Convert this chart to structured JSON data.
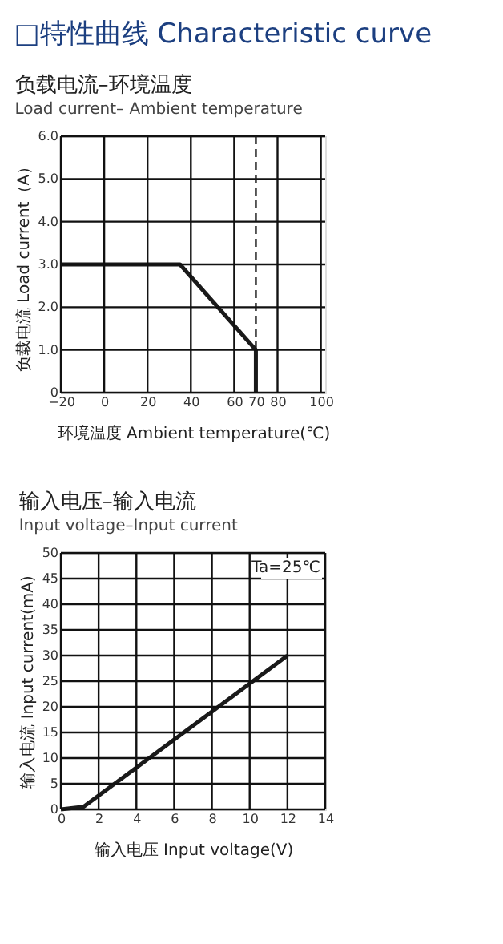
{
  "chart_data": [
    {
      "type": "line",
      "title": "负载电流–环境温度",
      "subtitle": "Load current– Ambient temperature",
      "annotations": [
        "□特性曲线 Characteristic curve"
      ],
      "xlabel": "环境温度 Ambient temperature(℃)",
      "ylabel": "负载电流 Load current（A）",
      "series": [
        {
          "color": "#1a1a1a",
          "x": [
            -20,
            35,
            70,
            70
          ],
          "values": [
            3,
            3,
            1,
            0
          ]
        }
      ],
      "xlim": [
        -20,
        102
      ],
      "xticks": [
        -20,
        0,
        20,
        40,
        60,
        70,
        80,
        100
      ],
      "ylim": [
        0,
        6
      ],
      "yticks": [
        0,
        {
          "value": 1,
          "label": "1.0"
        },
        {
          "value": 2,
          "label": "2.0"
        },
        {
          "value": 3,
          "label": "3.0"
        },
        {
          "value": 4,
          "label": "4.0"
        },
        {
          "value": 5,
          "label": "5.0"
        },
        {
          "value": 6,
          "label": "6.0"
        }
      ],
      "ref_lines": [
        {
          "axis": "x",
          "value": 70,
          "line_style": "dashed",
          "color": "#1a1a1a"
        }
      ],
      "grid": true,
      "marker": "none",
      "line_style": "solid",
      "legend": false
    },
    {
      "type": "line",
      "title": "输入电压–输入电流",
      "subtitle": "Input voltage–Input current",
      "annotations": [
        "Ta=25℃"
      ],
      "xlabel": "输入电压 Input voltage(V)",
      "ylabel": "输入电流 Input current(mA)",
      "series": [
        {
          "color": "#1a1a1a",
          "x": [
            0,
            1.2,
            12
          ],
          "values": [
            0,
            0.5,
            30
          ]
        }
      ],
      "xlim": [
        0,
        14
      ],
      "xticks": [
        0,
        2,
        4,
        6,
        8,
        10,
        12,
        14
      ],
      "ylim": [
        0,
        50
      ],
      "yticks": [
        0,
        5,
        10,
        15,
        20,
        25,
        30,
        35,
        40,
        45,
        50
      ],
      "grid": true,
      "marker": "none",
      "line_style": "solid",
      "legend": false
    }
  ]
}
